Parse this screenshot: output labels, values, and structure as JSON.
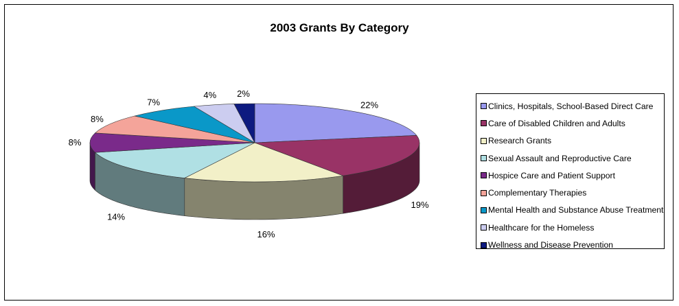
{
  "chart_data": {
    "type": "pie",
    "title": "2003 Grants By Category",
    "slices": [
      {
        "label": "Clinics, Hospitals, School-Based Direct Care",
        "value": 22,
        "value_label": "22%",
        "color": "#9999ee"
      },
      {
        "label": "Care of Disabled Children and Adults",
        "value": 19,
        "value_label": "19%",
        "color": "#993366"
      },
      {
        "label": "Research Grants",
        "value": 16,
        "value_label": "16%",
        "color": "#f2f0c8"
      },
      {
        "label": "Sexual Assault and Reproductive Care",
        "value": 14,
        "value_label": "14%",
        "color": "#b0e0e4"
      },
      {
        "label": "Hospice Care and Patient Support",
        "value": 8,
        "value_label": "8%",
        "color": "#7a2a8a"
      },
      {
        "label": "Complementary Therapies",
        "value": 8,
        "value_label": "8%",
        "color": "#f4a49a"
      },
      {
        "label": "Mental Health and Substance Abuse Treatment",
        "value": 7,
        "value_label": "7%",
        "color": "#0a98c8"
      },
      {
        "label": "Healthcare for the Homeless",
        "value": 4,
        "value_label": "4%",
        "color": "#cccdf0"
      },
      {
        "label": "Wellness and Disease Prevention",
        "value": 2,
        "value_label": "2%",
        "color": "#0d1a80"
      }
    ],
    "three_d": true,
    "legend_position": "right"
  }
}
